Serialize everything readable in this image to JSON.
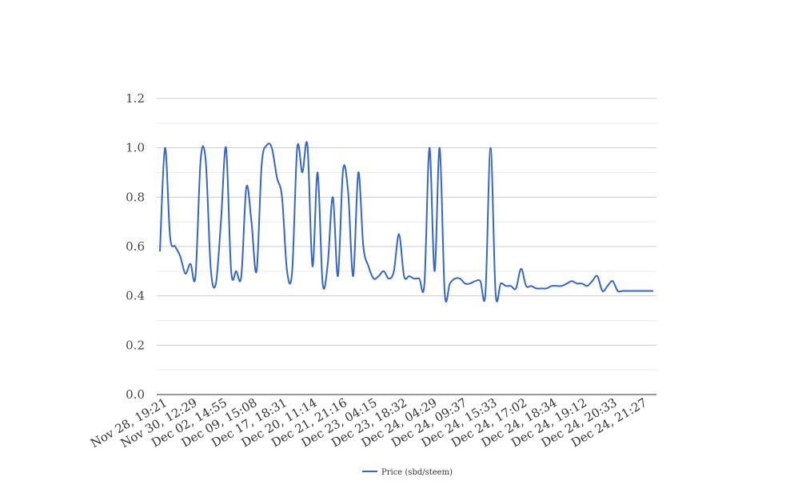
{
  "chart_data": {
    "type": "line",
    "title": "",
    "xlabel": "",
    "ylabel": "",
    "ylim": [
      0,
      1.2
    ],
    "yticks": [
      "0.0",
      "0.2",
      "0.4",
      "0.6",
      "0.8",
      "1.0",
      "1.2"
    ],
    "grid": true,
    "legend_position": "bottom",
    "x_tick_labels": [
      "Nov 28, 19:21",
      "Nov 30, 12:29",
      "Dec 02, 14:55",
      "Dec 09, 15:08",
      "Dec 17, 18:31",
      "Dec 20, 11:14",
      "Dec 21, 21:16",
      "Dec 23, 04:15",
      "Dec 23, 18:32",
      "Dec 24, 04:29",
      "Dec 24, 09:37",
      "Dec 24, 15:33",
      "Dec 24, 17:02",
      "Dec 24, 18:34",
      "Dec 24, 19:12",
      "Dec 24, 20:33",
      "Dec 24, 21:27"
    ],
    "series": [
      {
        "name": "Price (sbd/steem)",
        "color": "#3366cc",
        "values": [
          0.58,
          1.0,
          0.64,
          0.6,
          0.56,
          0.49,
          0.53,
          0.48,
          0.95,
          0.95,
          0.51,
          0.45,
          0.7,
          1.0,
          0.5,
          0.5,
          0.48,
          0.84,
          0.7,
          0.5,
          0.93,
          1.01,
          1.0,
          0.88,
          0.8,
          0.5,
          0.5,
          1.0,
          0.9,
          1.01,
          0.52,
          0.9,
          0.45,
          0.53,
          0.8,
          0.48,
          0.91,
          0.82,
          0.48,
          0.9,
          0.6,
          0.52,
          0.47,
          0.48,
          0.5,
          0.47,
          0.5,
          0.65,
          0.48,
          0.48,
          0.47,
          0.47,
          0.45,
          1.0,
          0.5,
          1.0,
          0.41,
          0.45,
          0.47,
          0.47,
          0.45,
          0.45,
          0.46,
          0.46,
          0.41,
          1.0,
          0.41,
          0.45,
          0.44,
          0.44,
          0.43,
          0.51,
          0.44,
          0.44,
          0.43,
          0.43,
          0.43,
          0.44,
          0.44,
          0.44,
          0.45,
          0.46,
          0.45,
          0.45,
          0.44,
          0.46,
          0.48,
          0.42,
          0.44,
          0.46,
          0.42,
          0.42,
          0.42,
          0.42,
          0.42,
          0.42,
          0.42,
          0.42
        ]
      }
    ]
  }
}
